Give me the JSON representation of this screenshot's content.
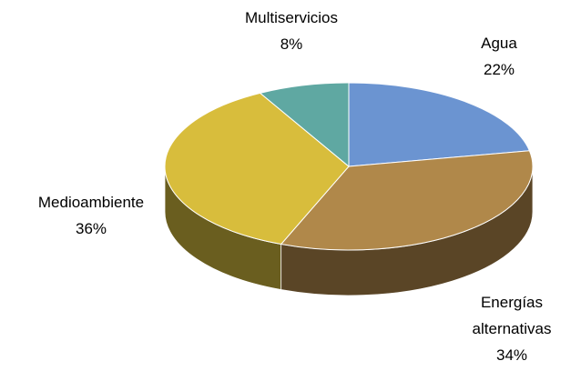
{
  "chart_data": {
    "type": "pie",
    "categories": [
      "Agua",
      "Energías alternativas",
      "Medioambiente",
      "Multiservicios"
    ],
    "values": [
      22,
      34,
      36,
      8
    ],
    "value_labels": [
      "22%",
      "34%",
      "36%",
      "8%"
    ],
    "colors": [
      "#6b94d1",
      "#b0884a",
      "#d8bd3c",
      "#5fa8a2"
    ],
    "side_colors": [
      "#3d5c8a",
      "#5a4526",
      "#6a5e1f",
      "#3a6d69"
    ],
    "three_d": true
  }
}
